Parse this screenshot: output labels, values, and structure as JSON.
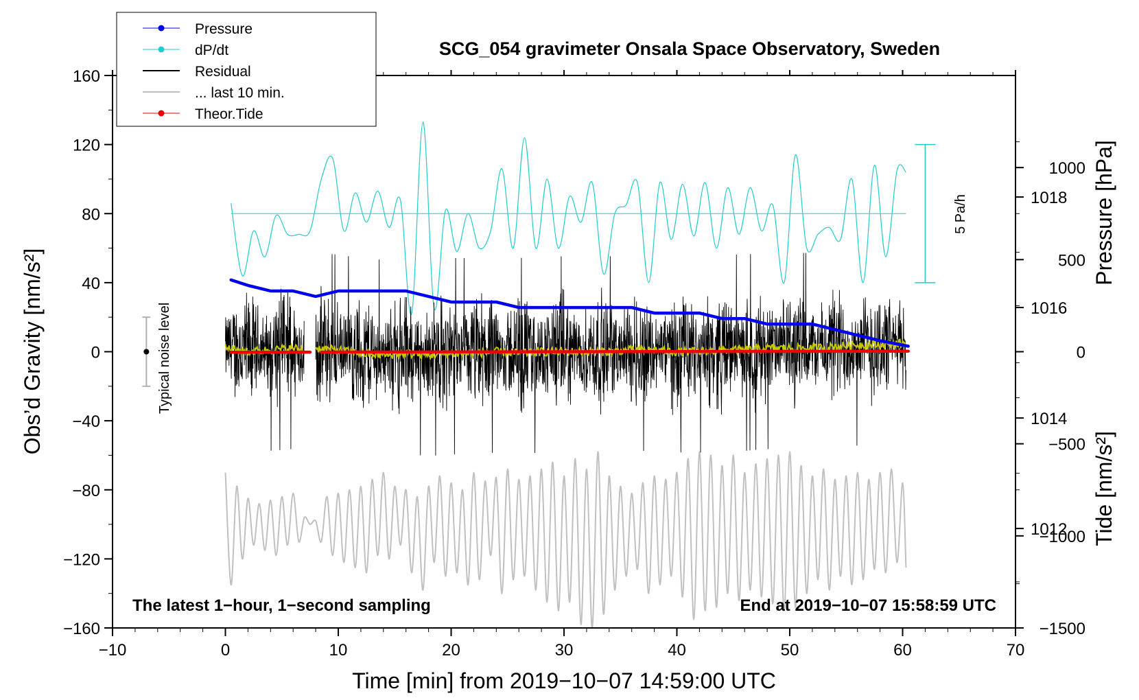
{
  "chart_data": {
    "type": "line",
    "title": "SCG_054 gravimeter Onsala Space Observatory, Sweden",
    "xlabel": "Time [min] from 2019−10−07 14:59:00 UTC",
    "ylabel_left": "Obs’d Gravity [nm/s²]",
    "ylabel_right_top": "Pressure [hPa]",
    "ylabel_right_bottom": "Tide [nm/s²]",
    "xlim": [
      -10,
      70
    ],
    "ylim": [
      -160,
      160
    ],
    "pressure_lim": [
      1010.2,
      1020.2
    ],
    "tide_lim": [
      -1500,
      1500
    ],
    "x_ticks": [
      "−10",
      "0",
      "10",
      "20",
      "30",
      "40",
      "50",
      "60",
      "70"
    ],
    "y_ticks": [
      "160",
      "120",
      "80",
      "40",
      "0",
      "−40",
      "−80",
      "−120",
      "−160"
    ],
    "pressure_ticks": [
      "1018",
      "1016",
      "1014",
      "1012"
    ],
    "tide_ticks": [
      "1000",
      "500",
      "0",
      "−500",
      "−1000",
      "−1500"
    ],
    "legend": [
      {
        "label": "Pressure",
        "color": "#0000ee",
        "marker": true
      },
      {
        "label": "dP/dt",
        "color": "#22cccc",
        "marker": true
      },
      {
        "label": "Residual",
        "color": "#000000",
        "marker": false
      },
      {
        "label": "... last 10 min.",
        "color": "#c0c0c0",
        "marker": false
      },
      {
        "label": "Theor.Tide",
        "color": "#ee0000",
        "marker": true
      }
    ],
    "annotations": {
      "left_note": "The latest 1−hour, 1−second sampling",
      "right_note": "End at 2019−10−07 15:58:59 UTC",
      "noise_label": "Typical noise level",
      "dpdt_scale_label": "5 Pa/h"
    },
    "noise_bar": {
      "x": -7,
      "center": 0,
      "half_range": 20
    },
    "dpdt_scale_bar": {
      "x": 62,
      "y_low": 40,
      "y_high": 120
    },
    "series": [
      {
        "name": "Pressure",
        "units": "hPa",
        "x": [
          0.5,
          2,
          4,
          6,
          8,
          10,
          12,
          14,
          16,
          18,
          20,
          22,
          24,
          26,
          28,
          30,
          32,
          34,
          36,
          38,
          40,
          42,
          44,
          46,
          48,
          50,
          52,
          54,
          56,
          58,
          60.5
        ],
        "values": [
          1016.5,
          1016.4,
          1016.3,
          1016.3,
          1016.2,
          1016.3,
          1016.3,
          1016.3,
          1016.3,
          1016.2,
          1016.1,
          1016.1,
          1016.1,
          1016.0,
          1016.0,
          1016.0,
          1016.0,
          1016.0,
          1016.0,
          1015.9,
          1015.9,
          1015.9,
          1015.8,
          1015.8,
          1015.7,
          1015.7,
          1015.7,
          1015.6,
          1015.5,
          1015.4,
          1015.3
        ]
      },
      {
        "name": "dP/dt",
        "baseline": 80,
        "x": [
          0.5,
          1.5,
          2.5,
          3.5,
          4.5,
          5.5,
          6.5,
          7.5,
          8.5,
          9.5,
          10.5,
          11.5,
          12.5,
          13.5,
          14.5,
          15.5,
          16.5,
          17.5,
          18.5,
          19.5,
          20.5,
          21.5,
          22.5,
          23.5,
          24.5,
          25.5,
          26.5,
          27.5,
          28.5,
          29.5,
          30.5,
          31.5,
          32.5,
          33.5,
          34.5,
          35.5,
          36.5,
          37.5,
          38.5,
          39.5,
          40.5,
          41.5,
          42.5,
          43.5,
          44.5,
          45.5,
          46.5,
          47.5,
          48.5,
          49.5,
          50.5,
          51.5,
          52.5,
          53.5,
          54.5,
          55.5,
          56.5,
          57.5,
          58.5,
          59.5,
          60.3
        ],
        "values": [
          86,
          44,
          70,
          55,
          79,
          68,
          68,
          70,
          100,
          112,
          70,
          92,
          75,
          93,
          72,
          88,
          22,
          133,
          25,
          82,
          58,
          80,
          60,
          70,
          106,
          60,
          124,
          60,
          100,
          60,
          90,
          75,
          98,
          45,
          80,
          85,
          98,
          40,
          98,
          65,
          97,
          67,
          98,
          60,
          95,
          68,
          95,
          70,
          85,
          40,
          114,
          60,
          68,
          72,
          65,
          100,
          40,
          108,
          55,
          105,
          104
        ]
      },
      {
        "name": "Residual",
        "segments": [
          [
            0,
            7
          ],
          [
            8,
            60.3
          ]
        ],
        "mean": 0,
        "envelope": 40,
        "extremes": {
          "max": 65,
          "min": -73
        }
      },
      {
        "name": "Residual smoothed",
        "color": "#c8c800",
        "x": [
          0,
          2,
          4,
          6,
          7,
          8,
          10,
          12,
          14,
          16,
          18,
          20,
          22,
          24,
          26,
          28,
          30,
          32,
          34,
          36,
          38,
          40,
          42,
          44,
          46,
          48,
          50,
          52,
          54,
          56,
          58,
          60.3
        ],
        "values": [
          2,
          0,
          1,
          2,
          1,
          2,
          1,
          -1,
          -2,
          -1,
          -2,
          -1,
          -1,
          0,
          -1,
          0,
          0,
          0,
          0,
          1,
          1,
          0,
          0,
          1,
          1,
          2,
          2,
          2,
          3,
          4,
          4,
          5
        ]
      },
      {
        "name": "... last 10 min.",
        "x": [
          0,
          0.5,
          1,
          1.5,
          2,
          2.5,
          3,
          3.5,
          4,
          4.5,
          5,
          5.5,
          6,
          6.5,
          7,
          7.5,
          8,
          8.5,
          9,
          9.5,
          10,
          10.5,
          11,
          11.5,
          12,
          12.5,
          13,
          13.5,
          14,
          14.5,
          15,
          15.5,
          16,
          16.5,
          17,
          17.5,
          18,
          18.5,
          19,
          19.5,
          20,
          20.5,
          21,
          21.5,
          22,
          22.5,
          23,
          23.5,
          24,
          24.5,
          25,
          25.5,
          26,
          26.5,
          27,
          27.5,
          28,
          28.5,
          29,
          29.5,
          30,
          30.5,
          31,
          31.5,
          32,
          32.5,
          33,
          33.5,
          34,
          34.5,
          35,
          35.5,
          36,
          36.5,
          37,
          37.5,
          38,
          38.5,
          39,
          39.5,
          40,
          40.5,
          41,
          41.5,
          42,
          42.5,
          43,
          43.5,
          44,
          44.5,
          45,
          45.5,
          46,
          46.5,
          47,
          47.5,
          48,
          48.5,
          49,
          49.5,
          50,
          50.5,
          51,
          51.5,
          52,
          52.5,
          53,
          53.5,
          54,
          54.5,
          55,
          55.5,
          56,
          56.5,
          57,
          57.5,
          58,
          58.5,
          59,
          59.5,
          60,
          60.3
        ],
        "values": [
          -70,
          -135,
          -78,
          -120,
          -85,
          -112,
          -88,
          -115,
          -86,
          -118,
          -84,
          -112,
          -82,
          -110,
          -96,
          -100,
          -98,
          -110,
          -84,
          -118,
          -82,
          -122,
          -80,
          -125,
          -78,
          -128,
          -74,
          -118,
          -70,
          -120,
          -78,
          -112,
          -80,
          -128,
          -84,
          -138,
          -78,
          -122,
          -72,
          -130,
          -76,
          -128,
          -80,
          -135,
          -70,
          -132,
          -75,
          -118,
          -73,
          -140,
          -68,
          -132,
          -74,
          -130,
          -72,
          -138,
          -68,
          -145,
          -64,
          -150,
          -72,
          -145,
          -62,
          -158,
          -68,
          -160,
          -58,
          -152,
          -72,
          -138,
          -78,
          -130,
          -82,
          -126,
          -76,
          -140,
          -72,
          -135,
          -74,
          -130,
          -70,
          -142,
          -62,
          -155,
          -58,
          -150,
          -60,
          -148,
          -66,
          -140,
          -60,
          -144,
          -70,
          -138,
          -65,
          -142,
          -62,
          -146,
          -60,
          -150,
          -58,
          -148,
          -66,
          -140,
          -72,
          -132,
          -68,
          -138,
          -74,
          -130,
          -72,
          -135,
          -70,
          -132,
          -74,
          -126,
          -70,
          -128,
          -68,
          -122,
          -76,
          -125
        ]
      },
      {
        "name": "Theor.Tide",
        "units": "nm/s²",
        "segments": [
          [
            0.5,
            7.5
          ],
          [
            8.5,
            60.5
          ]
        ],
        "x": [
          0.5,
          10,
          20,
          30,
          40,
          50,
          60.5
        ],
        "values": [
          -3,
          -2,
          -1,
          0,
          1,
          2,
          3
        ]
      }
    ]
  }
}
